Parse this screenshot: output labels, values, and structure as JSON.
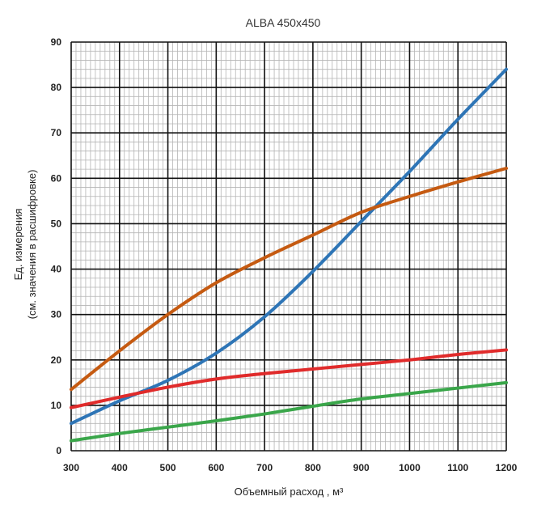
{
  "chart_data": {
    "type": "line",
    "title": "ALBA 450x450",
    "xlabel": "Объемный расход , м³",
    "ylabel_line1": "Ед. измерения",
    "ylabel_line2": "(см. значения в расшифровке)",
    "xlim": [
      300,
      1200
    ],
    "ylim": [
      0,
      90
    ],
    "x_ticks": [
      300,
      400,
      500,
      600,
      700,
      800,
      900,
      1000,
      1100,
      1200
    ],
    "y_ticks": [
      0,
      10,
      20,
      30,
      40,
      50,
      60,
      70,
      80,
      90
    ],
    "grid": true,
    "legend": "none",
    "x": [
      300,
      400,
      500,
      600,
      700,
      800,
      900,
      1000,
      1100,
      1200
    ],
    "series": [
      {
        "color": "#2e75b6",
        "values": [
          6,
          11,
          15.5,
          21.5,
          29.5,
          39.5,
          50.5,
          61.5,
          73,
          84
        ]
      },
      {
        "color": "#c55a11",
        "values": [
          13.5,
          22,
          30,
          37,
          42.5,
          47.5,
          52.5,
          56,
          59.2,
          62.2
        ]
      },
      {
        "color": "#e02b2b",
        "values": [
          9.5,
          11.8,
          14,
          15.8,
          17,
          18,
          19,
          20,
          21.2,
          22.2
        ]
      },
      {
        "color": "#3aa64a",
        "values": [
          2.2,
          3.8,
          5.2,
          6.6,
          8.1,
          9.8,
          11.4,
          12.6,
          13.8,
          15
        ]
      }
    ]
  }
}
